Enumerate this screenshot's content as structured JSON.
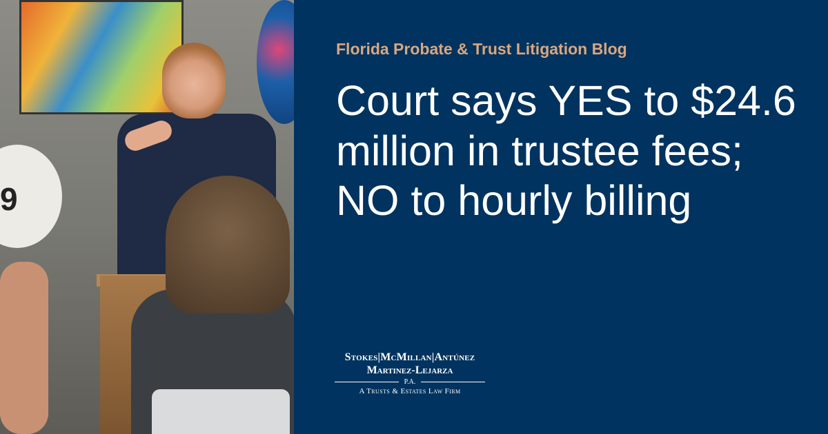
{
  "blog_name": "Florida Probate & Trust Litigation Blog",
  "headline": "Court says YES to $24.6 million in trustee fees; NO to hourly billing",
  "photo": {
    "paddle_number": "9"
  },
  "logo": {
    "line1": "Stokes|McMillan|Antúnez",
    "line2": "Martinez-Lejarza",
    "pa": "P.A.",
    "tagline": "A Trusts & Estates Law Firm"
  },
  "colors": {
    "background": "#00335f",
    "accent": "#dba77e",
    "text": "#ffffff"
  }
}
